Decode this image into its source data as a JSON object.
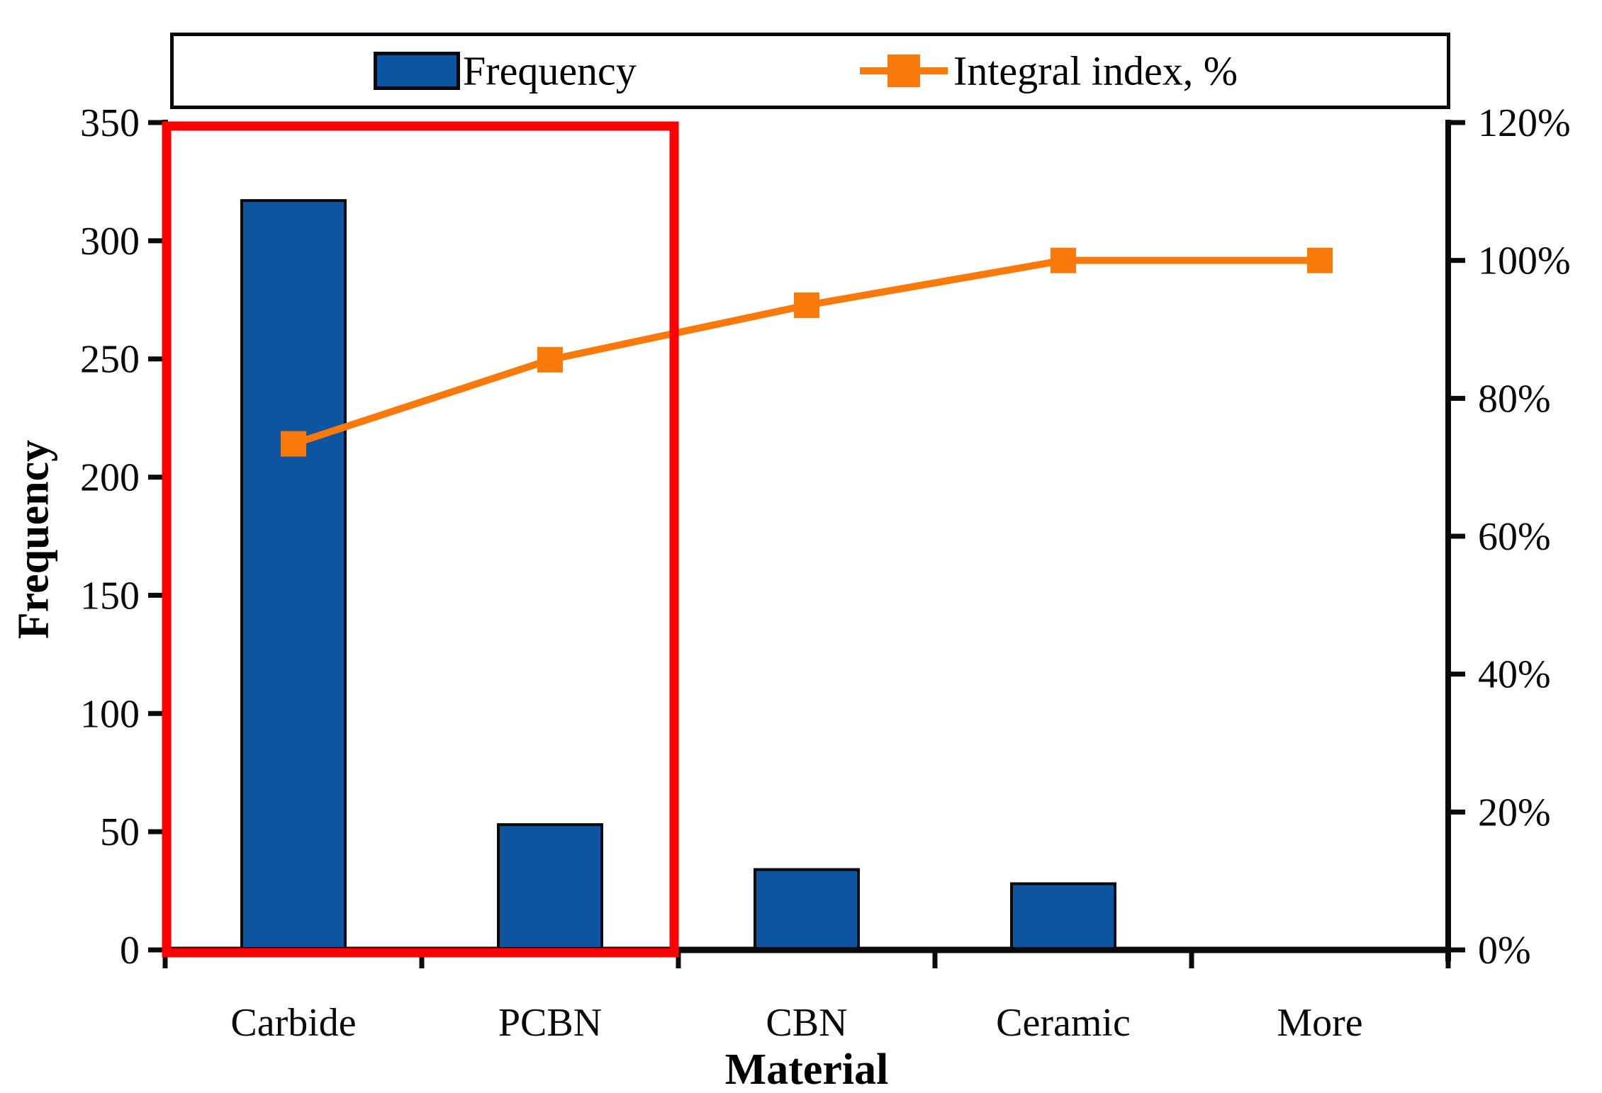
{
  "figure": {
    "background_color": "#ffffff",
    "text_color": "#0a0a0a"
  },
  "legend": {
    "frequency_label": "Frequency",
    "integral_label": "Integral index, %"
  },
  "chart_data": {
    "type": "bar",
    "subtype": "pareto-combo",
    "categories": [
      "Carbide",
      "PCBN",
      "CBN",
      "Ceramic",
      "More"
    ],
    "series": [
      {
        "name": "Frequency",
        "type": "bar",
        "axis": "left",
        "values": [
          317,
          53,
          34,
          28,
          0
        ],
        "color": "#0D55A1",
        "border_color": "#0a0a0a"
      },
      {
        "name": "Integral index, %",
        "type": "line",
        "axis": "right",
        "marker": "square",
        "cumulative_percent": [
          73.4,
          85.6,
          93.5,
          100.0,
          100.0
        ],
        "color": "#F9790B"
      }
    ],
    "title": "",
    "xlabel": "Material",
    "ylabel": "Frequency",
    "ylabel_right": "",
    "ylim_left": [
      0,
      350
    ],
    "ylim_right_percent": [
      0,
      120
    ],
    "left_tick_labels": [
      "0",
      "50",
      "100",
      "150",
      "200",
      "250",
      "300",
      "350"
    ],
    "right_tick_labels": [
      "0%",
      "20%",
      "40%",
      "60%",
      "80%",
      "100%",
      "120%"
    ],
    "grid": false,
    "legend_position": "top",
    "annotations": {
      "highlight_box": {
        "covers_categories": [
          "Carbide",
          "PCBN"
        ],
        "color": "#FE0000"
      }
    }
  }
}
